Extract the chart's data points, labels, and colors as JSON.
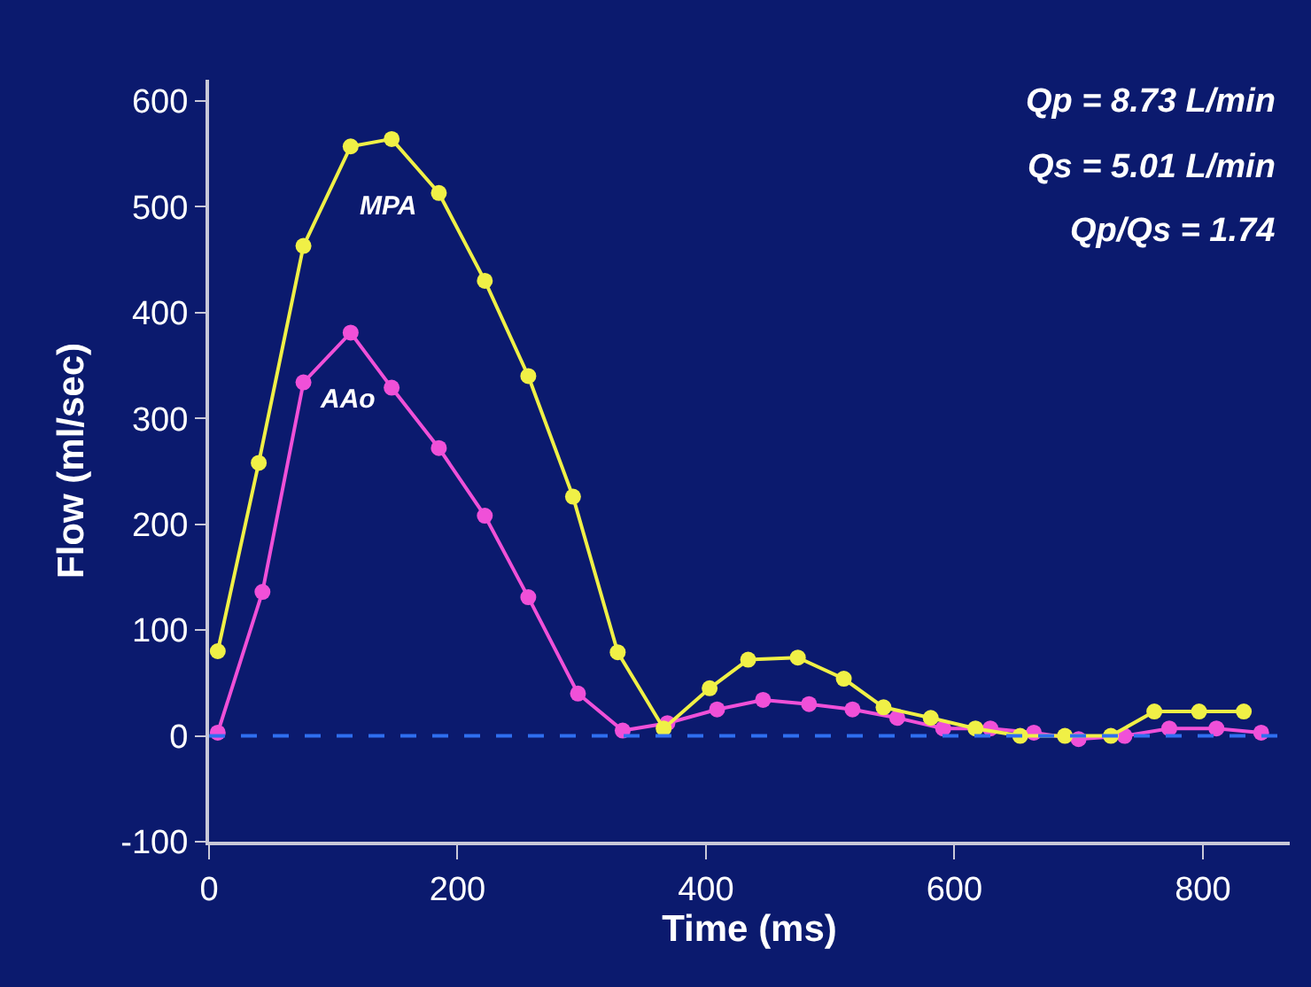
{
  "chart_data": {
    "type": "line",
    "xlabel": "Time (ms)",
    "ylabel": "Flow (ml/sec)",
    "xlim": [
      0,
      870
    ],
    "xticks": [
      0,
      200,
      400,
      600,
      800
    ],
    "ylim": [
      -100,
      620
    ],
    "yticks": [
      -100,
      0,
      100,
      200,
      300,
      400,
      500,
      600
    ],
    "grid": false,
    "legend": false,
    "marker": "circle",
    "line_style": "solid",
    "series": [
      {
        "name": "MPA",
        "color": "#f0f046",
        "x": [
          7,
          40,
          76,
          114,
          147,
          185,
          222,
          257,
          293,
          329,
          366,
          403,
          434,
          474,
          511,
          543,
          581,
          617,
          653,
          689,
          726,
          761,
          797,
          833
        ],
        "values": [
          80,
          258,
          463,
          557,
          564,
          513,
          430,
          340,
          226,
          79,
          7,
          45,
          72,
          74,
          54,
          27,
          17,
          7,
          0,
          0,
          0,
          23,
          23,
          23
        ]
      },
      {
        "name": "AAo",
        "color": "#f050d8",
        "x": [
          7,
          43,
          76,
          114,
          147,
          185,
          222,
          257,
          297,
          333,
          369,
          409,
          446,
          483,
          518,
          554,
          591,
          629,
          664,
          700,
          737,
          773,
          811,
          847
        ],
        "values": [
          3,
          136,
          334,
          381,
          329,
          272,
          208,
          131,
          40,
          5,
          12,
          25,
          34,
          30,
          25,
          17,
          7,
          7,
          3,
          -3,
          0,
          7,
          7,
          3
        ]
      }
    ],
    "ref_lines": [
      {
        "axis": "y",
        "value": 0,
        "color": "#2f6ff0",
        "line_style": "dashed"
      }
    ],
    "annotations": [
      "Qp = 8.73 L/min",
      "Qs = 5.01 L/min",
      "Qp/Qs = 1.74"
    ]
  }
}
